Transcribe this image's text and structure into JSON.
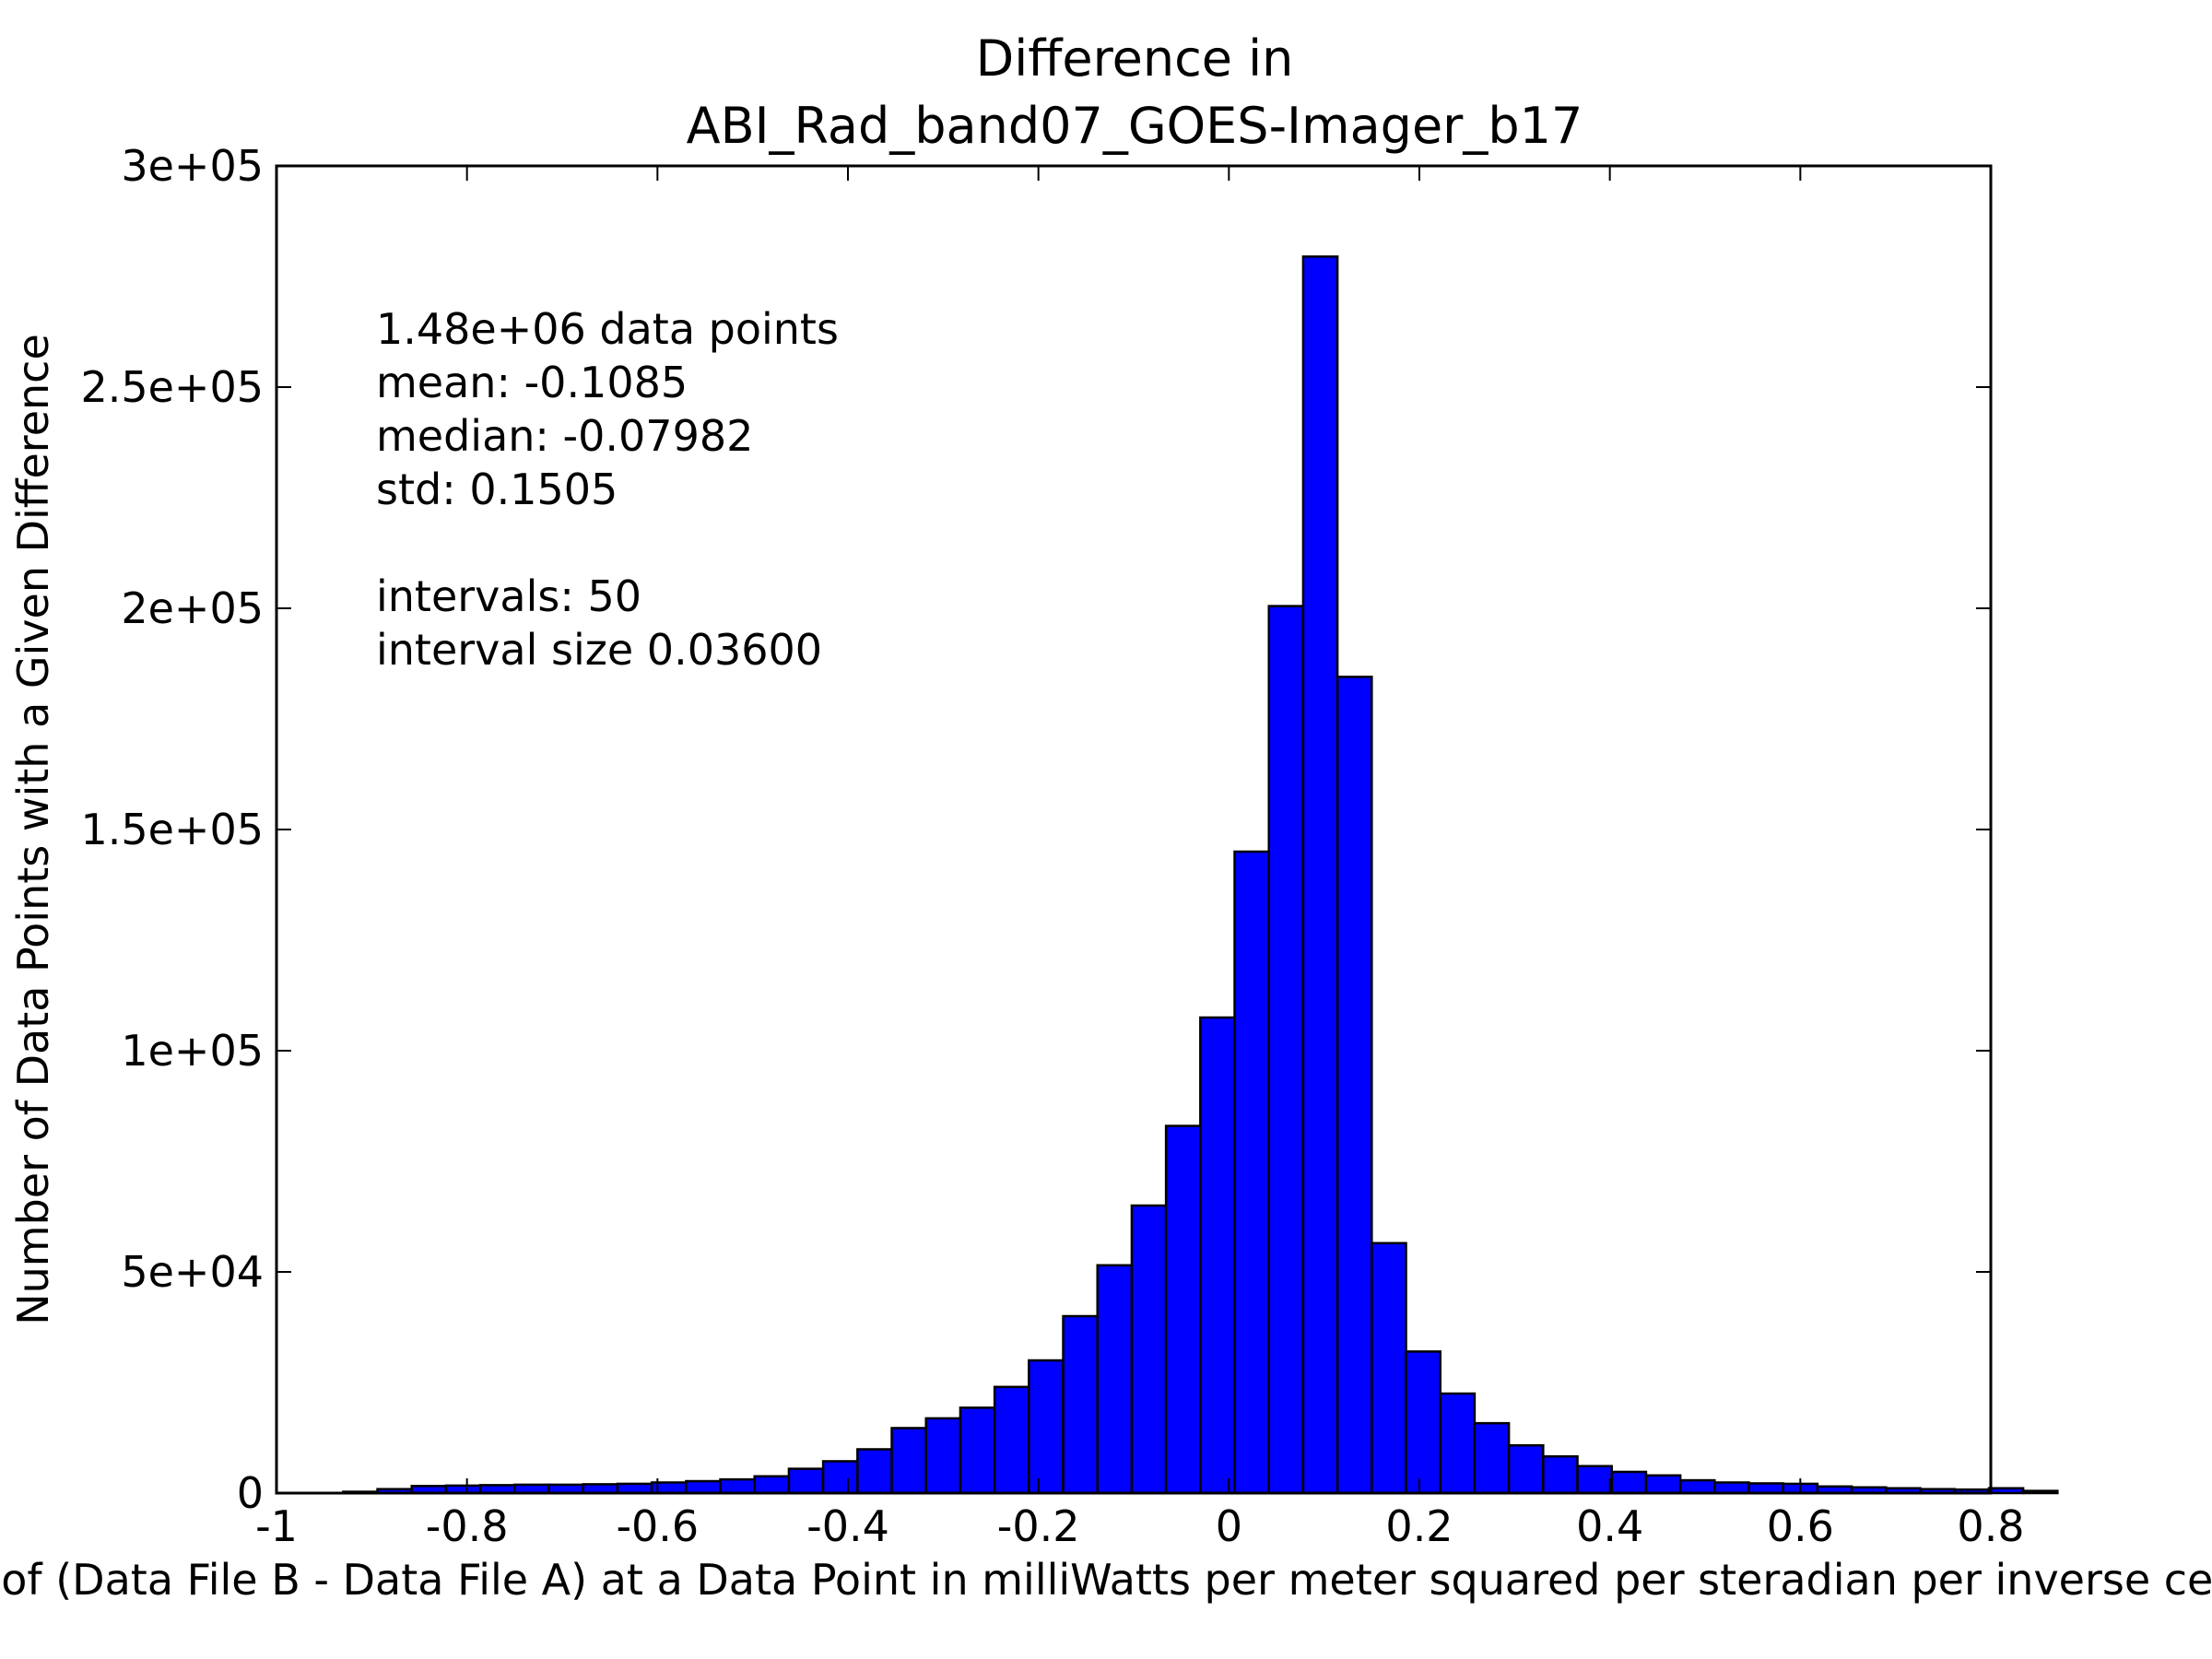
{
  "chart_data": {
    "type": "bar",
    "title_lines": [
      "Difference in",
      "ABI_Rad_band07_GOES-Imager_b17"
    ],
    "xlabel": "Value of (Data File B - Data File A) at a Data Point in milliWatts per meter squared per steradian per inverse centimeter",
    "ylabel": "Number of Data Points with a Given Difference",
    "xlim": [
      -1,
      0.8
    ],
    "ylim": [
      0,
      300000
    ],
    "x_ticks": [
      -1,
      -0.8,
      -0.6,
      -0.4,
      -0.2,
      0,
      0.2,
      0.4,
      0.6,
      0.8
    ],
    "x_tick_labels": [
      "-1",
      "-0.8",
      "-0.6",
      "-0.4",
      "-0.2",
      "0",
      "0.2",
      "0.4",
      "0.6",
      "0.8"
    ],
    "y_ticks": [
      0,
      50000,
      100000,
      150000,
      200000,
      250000,
      300000
    ],
    "y_tick_labels": [
      "0",
      "5e+04",
      "1e+05",
      "1.5e+05",
      "2e+05",
      "2.5e+05",
      "3e+05"
    ],
    "bin_start": -0.93,
    "bin_width": 0.036,
    "values": [
      300,
      900,
      1600,
      1700,
      1800,
      1900,
      1900,
      2000,
      2100,
      2400,
      2700,
      3100,
      3800,
      5500,
      7200,
      9900,
      14700,
      16900,
      19300,
      24000,
      30000,
      40000,
      51500,
      65000,
      83000,
      107500,
      145000,
      200500,
      279500,
      184500,
      56500,
      32000,
      22500,
      15800,
      10800,
      8300,
      6100,
      4800,
      4000,
      2900,
      2400,
      2200,
      2100,
      1500,
      1300,
      1100,
      900,
      800,
      1100,
      500
    ],
    "bar_color": "#0000ff",
    "edge_color": "#000000",
    "annotation_lines": [
      "1.48e+06 data points",
      "mean: -0.1085",
      "median: -0.07982",
      "std: 0.1505",
      "",
      "intervals: 50",
      "interval size 0.03600"
    ],
    "grid": false,
    "legend": "none"
  }
}
